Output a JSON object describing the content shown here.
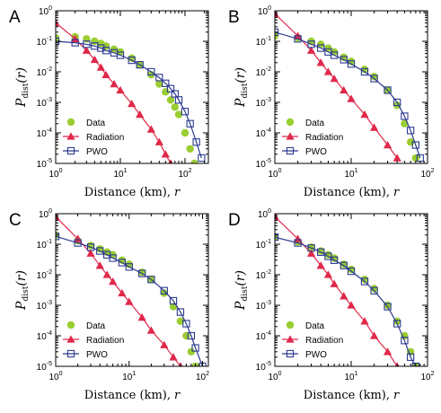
{
  "figure": {
    "ylabel_main": "P",
    "ylabel_sub": "dist",
    "ylabel_arg": "(r)",
    "xlabel_text": "Distance (km),",
    "xlabel_var": "r"
  },
  "colors": {
    "data": "#9ACD32",
    "radiation": "#E0284A",
    "pwo": "#2B3990",
    "axis": "#000000"
  },
  "legend": {
    "data": "Data",
    "radiation": "Radiation",
    "pwo": "PWO"
  },
  "chart_data": [
    {
      "panel_label": "A",
      "type": "scatter",
      "scale": "log-log",
      "xlim": [
        1,
        230
      ],
      "ylim": [
        1e-05,
        1
      ],
      "xticks": [
        {
          "value": 1,
          "base": "10",
          "exp": "0"
        },
        {
          "value": 10,
          "base": "10",
          "exp": "1"
        },
        {
          "value": 100,
          "base": "10",
          "exp": "2"
        }
      ],
      "yticks": [
        {
          "value": 1,
          "base": "10",
          "exp": "0"
        },
        {
          "value": 0.1,
          "base": "10",
          "exp": "-1"
        },
        {
          "value": 0.01,
          "base": "10",
          "exp": "-2"
        },
        {
          "value": 0.001,
          "base": "10",
          "exp": "-3"
        },
        {
          "value": 0.0001,
          "base": "10",
          "exp": "-4"
        },
        {
          "value": 1e-05,
          "base": "10",
          "exp": "-5"
        }
      ],
      "legend_position": "lower-left",
      "series": [
        {
          "name": "Data",
          "marker": "circle",
          "points": [
            [
              1,
              0.13
            ],
            [
              2,
              0.14
            ],
            [
              3,
              0.12
            ],
            [
              4,
              0.1
            ],
            [
              5,
              0.085
            ],
            [
              6,
              0.07
            ],
            [
              8,
              0.055
            ],
            [
              10,
              0.045
            ],
            [
              15,
              0.028
            ],
            [
              20,
              0.017
            ],
            [
              30,
              0.008
            ],
            [
              40,
              0.004
            ],
            [
              50,
              0.0022
            ],
            [
              60,
              0.0012
            ],
            [
              70,
              0.0007
            ],
            [
              80,
              0.0004
            ],
            [
              100,
              0.0001
            ],
            [
              120,
              3e-05
            ],
            [
              140,
              1e-05
            ]
          ]
        },
        {
          "name": "Radiation",
          "marker": "triangle",
          "points": [
            [
              1,
              0.4
            ],
            [
              2,
              0.12
            ],
            [
              3,
              0.05
            ],
            [
              4,
              0.025
            ],
            [
              5,
              0.014
            ],
            [
              6,
              0.008
            ],
            [
              8,
              0.004
            ],
            [
              10,
              0.0025
            ],
            [
              15,
              0.0009
            ],
            [
              20,
              0.0004
            ],
            [
              30,
              0.00013
            ],
            [
              40,
              5e-05
            ],
            [
              50,
              2e-05
            ],
            [
              60,
              1e-05
            ]
          ]
        },
        {
          "name": "PWO",
          "marker": "square",
          "points": [
            [
              1,
              0.1
            ],
            [
              2,
              0.09
            ],
            [
              3,
              0.08
            ],
            [
              4,
              0.07
            ],
            [
              5,
              0.06
            ],
            [
              6,
              0.05
            ],
            [
              8,
              0.042
            ],
            [
              10,
              0.035
            ],
            [
              15,
              0.024
            ],
            [
              20,
              0.017
            ],
            [
              30,
              0.01
            ],
            [
              40,
              0.0065
            ],
            [
              50,
              0.0042
            ],
            [
              60,
              0.0028
            ],
            [
              70,
              0.0019
            ],
            [
              80,
              0.0012
            ],
            [
              100,
              0.0005
            ],
            [
              120,
              0.0002
            ],
            [
              150,
              5e-05
            ],
            [
              180,
              1.5e-05
            ]
          ]
        }
      ]
    },
    {
      "panel_label": "B",
      "type": "scatter",
      "scale": "log-log",
      "xlim": [
        1,
        100
      ],
      "ylim": [
        1e-05,
        1
      ],
      "xticks": [
        {
          "value": 1,
          "base": "10",
          "exp": "0"
        },
        {
          "value": 10,
          "base": "10",
          "exp": "1"
        },
        {
          "value": 100,
          "base": "10",
          "exp": "2"
        }
      ],
      "yticks": [
        {
          "value": 1,
          "base": "10",
          "exp": "0"
        },
        {
          "value": 0.1,
          "base": "10",
          "exp": "-1"
        },
        {
          "value": 0.01,
          "base": "10",
          "exp": "-2"
        },
        {
          "value": 0.001,
          "base": "10",
          "exp": "-3"
        },
        {
          "value": 0.0001,
          "base": "10",
          "exp": "-4"
        },
        {
          "value": 1e-05,
          "base": "10",
          "exp": "-5"
        }
      ],
      "legend_position": "lower-left",
      "series": [
        {
          "name": "Data",
          "marker": "circle",
          "points": [
            [
              1,
              0.15
            ],
            [
              2,
              0.13
            ],
            [
              3,
              0.1
            ],
            [
              4,
              0.08
            ],
            [
              5,
              0.06
            ],
            [
              6,
              0.045
            ],
            [
              8,
              0.03
            ],
            [
              10,
              0.022
            ],
            [
              15,
              0.012
            ],
            [
              20,
              0.007
            ],
            [
              30,
              0.0025
            ],
            [
              40,
              0.0008
            ],
            [
              50,
              0.0002
            ],
            [
              60,
              5e-05
            ],
            [
              70,
              1.5e-05
            ]
          ]
        },
        {
          "name": "Radiation",
          "marker": "triangle",
          "points": [
            [
              1,
              0.8
            ],
            [
              2,
              0.15
            ],
            [
              3,
              0.05
            ],
            [
              4,
              0.02
            ],
            [
              5,
              0.01
            ],
            [
              6,
              0.006
            ],
            [
              8,
              0.0025
            ],
            [
              10,
              0.0013
            ],
            [
              15,
              0.0004
            ],
            [
              20,
              0.00015
            ],
            [
              30,
              4e-05
            ],
            [
              40,
              1.5e-05
            ]
          ]
        },
        {
          "name": "PWO",
          "marker": "square",
          "points": [
            [
              1,
              0.2
            ],
            [
              2,
              0.12
            ],
            [
              3,
              0.08
            ],
            [
              4,
              0.06
            ],
            [
              5,
              0.045
            ],
            [
              6,
              0.035
            ],
            [
              8,
              0.025
            ],
            [
              10,
              0.018
            ],
            [
              15,
              0.01
            ],
            [
              20,
              0.006
            ],
            [
              30,
              0.0025
            ],
            [
              40,
              0.001
            ],
            [
              50,
              0.00035
            ],
            [
              60,
              0.00012
            ],
            [
              70,
              4e-05
            ],
            [
              80,
              1.5e-05
            ]
          ]
        }
      ]
    },
    {
      "panel_label": "C",
      "type": "scatter",
      "scale": "log-log",
      "xlim": [
        1,
        120
      ],
      "ylim": [
        1e-05,
        1
      ],
      "xticks": [
        {
          "value": 1,
          "base": "10",
          "exp": "0"
        },
        {
          "value": 10,
          "base": "10",
          "exp": "1"
        },
        {
          "value": 100,
          "base": "10",
          "exp": "2"
        }
      ],
      "yticks": [
        {
          "value": 1,
          "base": "10",
          "exp": "0"
        },
        {
          "value": 0.1,
          "base": "10",
          "exp": "-1"
        },
        {
          "value": 0.01,
          "base": "10",
          "exp": "-2"
        },
        {
          "value": 0.001,
          "base": "10",
          "exp": "-3"
        },
        {
          "value": 0.0001,
          "base": "10",
          "exp": "-4"
        },
        {
          "value": 1e-05,
          "base": "10",
          "exp": "-5"
        }
      ],
      "legend_position": "lower-left",
      "series": [
        {
          "name": "Data",
          "marker": "circle",
          "points": [
            [
              1,
              0.2
            ],
            [
              2,
              0.13
            ],
            [
              3,
              0.09
            ],
            [
              4,
              0.07
            ],
            [
              5,
              0.055
            ],
            [
              6,
              0.045
            ],
            [
              8,
              0.03
            ],
            [
              10,
              0.022
            ],
            [
              15,
              0.012
            ],
            [
              20,
              0.007
            ],
            [
              30,
              0.0025
            ],
            [
              40,
              0.0009
            ],
            [
              50,
              0.0003
            ],
            [
              60,
              0.0001
            ],
            [
              70,
              3e-05
            ],
            [
              80,
              1e-05
            ]
          ]
        },
        {
          "name": "Radiation",
          "marker": "triangle",
          "points": [
            [
              1,
              0.8
            ],
            [
              2,
              0.15
            ],
            [
              3,
              0.05
            ],
            [
              4,
              0.02
            ],
            [
              5,
              0.01
            ],
            [
              6,
              0.006
            ],
            [
              8,
              0.0025
            ],
            [
              10,
              0.0013
            ],
            [
              15,
              0.0004
            ],
            [
              20,
              0.00015
            ],
            [
              30,
              5e-05
            ],
            [
              40,
              2e-05
            ],
            [
              50,
              1e-05
            ]
          ]
        },
        {
          "name": "PWO",
          "marker": "square",
          "points": [
            [
              1,
              0.18
            ],
            [
              2,
              0.11
            ],
            [
              3,
              0.08
            ],
            [
              4,
              0.06
            ],
            [
              5,
              0.045
            ],
            [
              6,
              0.035
            ],
            [
              8,
              0.025
            ],
            [
              10,
              0.018
            ],
            [
              15,
              0.011
            ],
            [
              20,
              0.007
            ],
            [
              30,
              0.003
            ],
            [
              40,
              0.0014
            ],
            [
              50,
              0.0006
            ],
            [
              60,
              0.00025
            ],
            [
              70,
              0.0001
            ],
            [
              80,
              4e-05
            ],
            [
              100,
              1e-05
            ]
          ]
        }
      ]
    },
    {
      "panel_label": "D",
      "type": "scatter",
      "scale": "log-log",
      "xlim": [
        1,
        100
      ],
      "ylim": [
        1e-05,
        1
      ],
      "xticks": [
        {
          "value": 1,
          "base": "10",
          "exp": "0"
        },
        {
          "value": 10,
          "base": "10",
          "exp": "1"
        },
        {
          "value": 100,
          "base": "10",
          "exp": "2"
        }
      ],
      "yticks": [
        {
          "value": 1,
          "base": "10",
          "exp": "0"
        },
        {
          "value": 0.1,
          "base": "10",
          "exp": "-1"
        },
        {
          "value": 0.01,
          "base": "10",
          "exp": "-2"
        },
        {
          "value": 0.001,
          "base": "10",
          "exp": "-3"
        },
        {
          "value": 0.0001,
          "base": "10",
          "exp": "-4"
        },
        {
          "value": 1e-05,
          "base": "10",
          "exp": "-5"
        }
      ],
      "legend_position": "lower-left",
      "series": [
        {
          "name": "Data",
          "marker": "circle",
          "points": [
            [
              1,
              0.17
            ],
            [
              2,
              0.12
            ],
            [
              3,
              0.08
            ],
            [
              4,
              0.06
            ],
            [
              5,
              0.045
            ],
            [
              6,
              0.035
            ],
            [
              8,
              0.022
            ],
            [
              10,
              0.015
            ],
            [
              15,
              0.007
            ],
            [
              20,
              0.0035
            ],
            [
              30,
              0.001
            ],
            [
              40,
              0.0003
            ],
            [
              50,
              0.0001
            ],
            [
              60,
              3e-05
            ],
            [
              70,
              1e-05
            ]
          ]
        },
        {
          "name": "Radiation",
          "marker": "triangle",
          "points": [
            [
              1,
              0.8
            ],
            [
              2,
              0.15
            ],
            [
              3,
              0.05
            ],
            [
              4,
              0.02
            ],
            [
              5,
              0.01
            ],
            [
              6,
              0.005
            ],
            [
              8,
              0.002
            ],
            [
              10,
              0.001
            ],
            [
              15,
              0.0003
            ],
            [
              20,
              0.0001
            ],
            [
              30,
              3e-05
            ],
            [
              40,
              1e-05
            ]
          ]
        },
        {
          "name": "PWO",
          "marker": "square",
          "points": [
            [
              1,
              0.17
            ],
            [
              2,
              0.11
            ],
            [
              3,
              0.075
            ],
            [
              4,
              0.055
            ],
            [
              5,
              0.04
            ],
            [
              6,
              0.03
            ],
            [
              8,
              0.02
            ],
            [
              10,
              0.013
            ],
            [
              15,
              0.006
            ],
            [
              20,
              0.003
            ],
            [
              30,
              0.0009
            ],
            [
              40,
              0.00025
            ],
            [
              50,
              7e-05
            ],
            [
              60,
              2e-05
            ],
            [
              70,
              1e-05
            ]
          ]
        }
      ]
    }
  ]
}
